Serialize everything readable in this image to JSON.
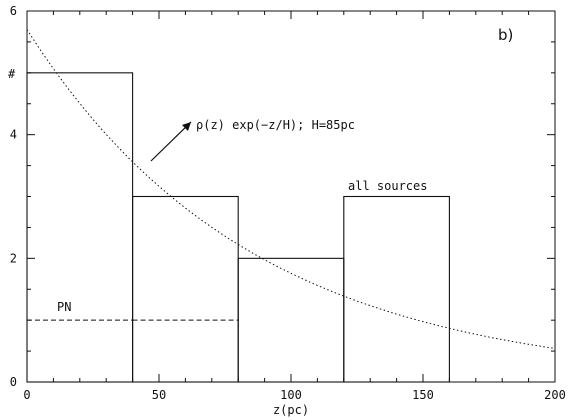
{
  "chart_data": {
    "type": "bar",
    "panel_label": "b)",
    "xlabel": "z(pc)",
    "ylabel": "#",
    "xlim": [
      0,
      200
    ],
    "ylim": [
      0,
      6
    ],
    "x_ticks": [
      "0",
      "50",
      "100",
      "150",
      "200"
    ],
    "y_ticks": [
      "0",
      "2",
      "4",
      "6"
    ],
    "grid": false,
    "bins": [
      {
        "x_start": 0,
        "x_end": 40,
        "value": 5
      },
      {
        "x_start": 40,
        "x_end": 80,
        "value": 3
      },
      {
        "x_start": 80,
        "x_end": 120,
        "value": 2
      },
      {
        "x_start": 120,
        "x_end": 160,
        "value": 3
      }
    ],
    "pn_series": {
      "name": "PN",
      "bins": [
        {
          "x_start": 0,
          "x_end": 40,
          "value": 1
        },
        {
          "x_start": 40,
          "x_end": 80,
          "value": 1
        }
      ]
    },
    "fit_curve": {
      "label": "ρ(z)  exp(−z/H); H=85pc",
      "amplitude": 5.7,
      "scale_height": 85
    },
    "annotations": {
      "all_sources": "all sources",
      "pn": "PN"
    }
  }
}
